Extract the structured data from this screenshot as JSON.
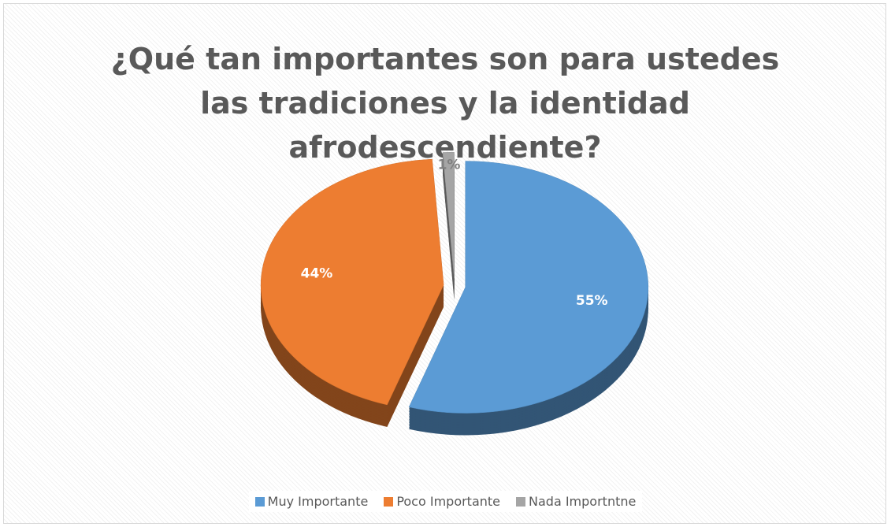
{
  "chart_data": {
    "type": "pie",
    "title": "¿Qué tan importantes son para ustedes las tradiciones y la identidad afrodescendiente?",
    "categories": [
      "Muy Importante",
      "Poco Importante",
      "Nada Importntne"
    ],
    "values": [
      55,
      44,
      1
    ],
    "value_labels": [
      "55%",
      "44%",
      "1%"
    ],
    "colors": [
      "#5b9bd5",
      "#ed7d31",
      "#a5a5a5"
    ],
    "legend": "bottom"
  }
}
